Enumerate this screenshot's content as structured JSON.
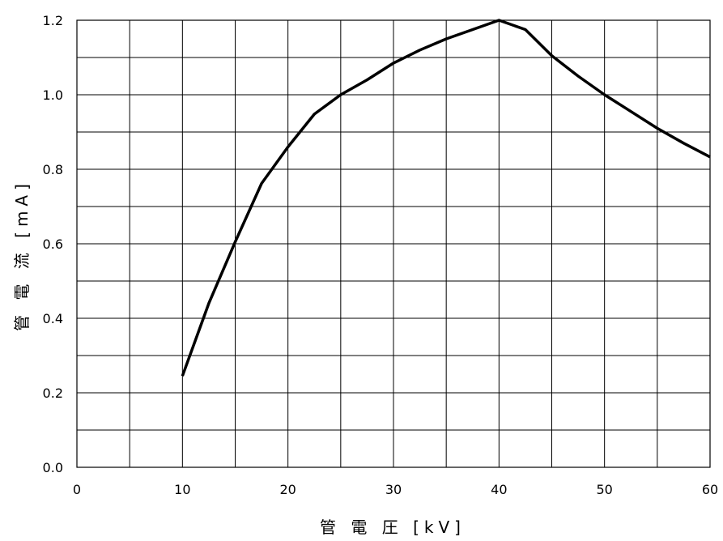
{
  "chart_data": {
    "type": "line",
    "xlabel": "管 電 圧 [kV]",
    "ylabel": "管 電 流 [mA]",
    "xlim": [
      0,
      60
    ],
    "ylim": [
      0,
      1.2
    ],
    "x_ticks": [
      "0",
      "10",
      "20",
      "30",
      "40",
      "50",
      "60"
    ],
    "y_ticks": [
      "0.0",
      "0.2",
      "0.4",
      "0.6",
      "0.8",
      "1.0",
      "1.2"
    ],
    "grid": true,
    "series": [
      {
        "color": "#000000",
        "points": [
          [
            10,
            0.245
          ],
          [
            12.5,
            0.44
          ],
          [
            15,
            0.605
          ],
          [
            17.5,
            0.762
          ],
          [
            20,
            0.86
          ],
          [
            22.5,
            0.948
          ],
          [
            25,
            1.0
          ],
          [
            27.5,
            1.04
          ],
          [
            30,
            1.085
          ],
          [
            32.5,
            1.12
          ],
          [
            35,
            1.15
          ],
          [
            37.5,
            1.175
          ],
          [
            40,
            1.2
          ],
          [
            42.5,
            1.175
          ],
          [
            45,
            1.105
          ],
          [
            47.5,
            1.05
          ],
          [
            50,
            1.0
          ],
          [
            52.5,
            0.955
          ],
          [
            55,
            0.91
          ],
          [
            57.5,
            0.87
          ],
          [
            60,
            0.833
          ]
        ]
      }
    ]
  }
}
